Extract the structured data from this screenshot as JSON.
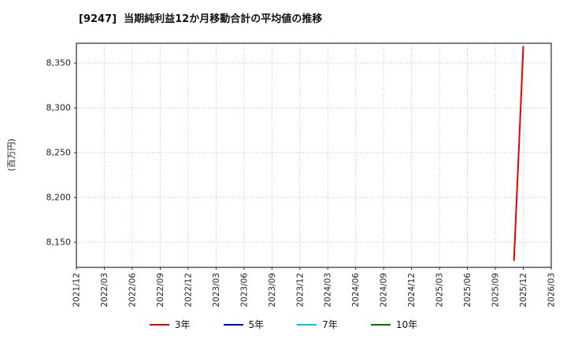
{
  "chart_data": {
    "type": "line",
    "title": "[9247]  当期純利益12か月移動合計の平均値の推移",
    "ylabel": "(百万円)",
    "xlim": [
      "2021/12",
      "2026/03"
    ],
    "ylim": [
      8122,
      8372
    ],
    "grid": true,
    "x_ticks": [
      "2021/12",
      "2022/03",
      "2022/06",
      "2022/09",
      "2022/12",
      "2023/03",
      "2023/06",
      "2023/09",
      "2023/12",
      "2024/03",
      "2024/06",
      "2024/09",
      "2024/12",
      "2025/03",
      "2025/06",
      "2025/09",
      "2025/12",
      "2026/03"
    ],
    "y_ticks": [
      {
        "value": 8150,
        "label": "8,150"
      },
      {
        "value": 8200,
        "label": "8,200"
      },
      {
        "value": 8250,
        "label": "8,250"
      },
      {
        "value": 8300,
        "label": "8,300"
      },
      {
        "value": 8350,
        "label": "8,350"
      }
    ],
    "legend": [
      {
        "label": "3年",
        "color": "#e60000"
      },
      {
        "label": "5年",
        "color": "#0000cc"
      },
      {
        "label": "7年",
        "color": "#00c8e0"
      },
      {
        "label": "10年",
        "color": "#007700"
      }
    ],
    "series": [
      {
        "name": "3年",
        "color": "#e60000",
        "points": [
          {
            "x": "2025/11",
            "y": 8130
          },
          {
            "x": "2025/12",
            "y": 8368
          }
        ]
      },
      {
        "name": "5年",
        "color": "#0000cc",
        "points": []
      },
      {
        "name": "7年",
        "color": "#00c8e0",
        "points": []
      },
      {
        "name": "10年",
        "color": "#007700",
        "points": []
      }
    ]
  }
}
